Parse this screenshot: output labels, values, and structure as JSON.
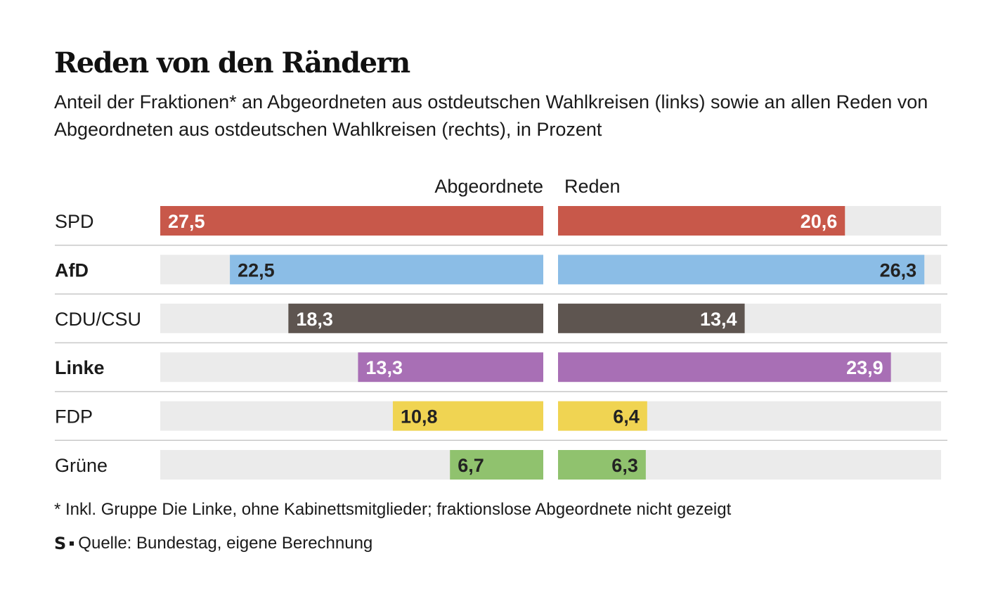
{
  "title": "Reden von den Rändern",
  "subtitle": "Anteil der Fraktionen* an Abgeordneten aus ostdeutschen Wahlkreisen (links) sowie an allen Reden von Abgeordneten aus ostdeutschen Wahlkreisen (rechts), in Prozent",
  "footnote": "* Inkl. Gruppe Die Linke, ohne Kabinettsmitglieder; fraktionslose Abgeordnete nicht gezeigt",
  "source": {
    "logo": "S",
    "text": "Quelle: Bundestag, eigene Berechnung"
  },
  "chart_data": {
    "type": "bar",
    "orientation": "horizontal-butterfly",
    "xlim": [
      0,
      27.5
    ],
    "categories": [
      "SPD",
      "AfD",
      "CDU/CSU",
      "Linke",
      "FDP",
      "Grüne"
    ],
    "bold_categories": [
      "AfD",
      "Linke"
    ],
    "colors": [
      "#c8584a",
      "#8bbde6",
      "#5e5550",
      "#a86fb5",
      "#f0d452",
      "#90c26e"
    ],
    "label_colors": [
      "#ffffff",
      "#222222",
      "#ffffff",
      "#ffffff",
      "#222222",
      "#222222"
    ],
    "track_color": "#ebebeb",
    "series": [
      {
        "name": "Abgeordnete",
        "values": [
          27.5,
          22.5,
          18.3,
          13.3,
          10.8,
          6.7
        ],
        "labels": [
          "27,5",
          "22,5",
          "18,3",
          "13,3",
          "10,8",
          "6,7"
        ]
      },
      {
        "name": "Reden",
        "values": [
          20.6,
          26.3,
          13.4,
          23.9,
          6.4,
          6.3
        ],
        "labels": [
          "20,6",
          "26,3",
          "13,4",
          "23,9",
          "6,4",
          "6,3"
        ]
      }
    ]
  }
}
